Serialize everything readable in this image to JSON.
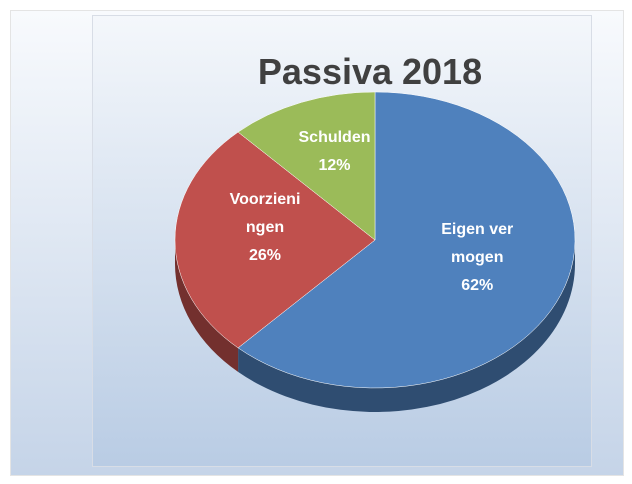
{
  "chart_data": {
    "type": "pie",
    "title": "Passiva 2018",
    "categories": [
      "Eigen vermogen",
      "Voorzieningen",
      "Schulden"
    ],
    "values": [
      62,
      26,
      12
    ],
    "value_labels": [
      "62%",
      "26%",
      "12%"
    ],
    "colors": [
      "#4f81bd",
      "#c0504d",
      "#9bbb59"
    ]
  }
}
